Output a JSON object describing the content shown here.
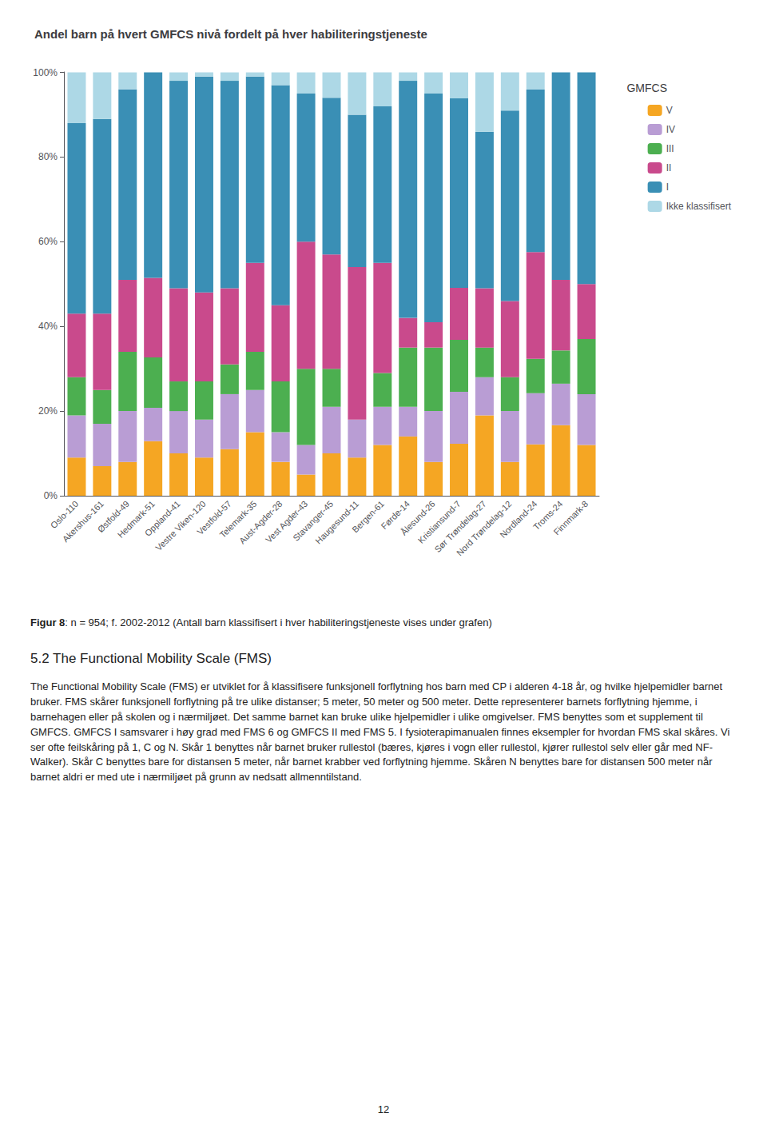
{
  "chart_data": {
    "type": "bar",
    "stacked": true,
    "title": "Andel barn på hvert GMFCS nivå fordelt på hver habiliteringstjeneste",
    "categories": [
      "Oslo-110",
      "Akershus-161",
      "Østfold-49",
      "Hedmark-51",
      "Oppland-41",
      "Vestre Viken-120",
      "Vestfold-57",
      "Telemark-35",
      "Aust-Agder-28",
      "Vest Agder-43",
      "Stavanger-45",
      "Haugesund-11",
      "Bergen-61",
      "Førde-14",
      "Ålesund-26",
      "Kristiansund-7",
      "Sør Trøndelag-27",
      "Nord Trøndelag-12",
      "Nordland-24",
      "Troms-24",
      "Finnmark-8"
    ],
    "series": [
      {
        "name": "V",
        "color": "#f5a623",
        "values": [
          0.09,
          0.07,
          0.08,
          0.128713,
          0.1,
          0.09,
          0.11,
          0.15,
          0.08,
          0.05,
          0.1,
          0.09,
          0.12,
          0.14,
          0.08,
          0.122807,
          0.19,
          0.08,
          0.121212,
          0.166667,
          0.12
        ]
      },
      {
        "name": "IV",
        "color": "#b99dd4",
        "values": [
          0.1,
          0.1,
          0.12,
          0.079208,
          0.1,
          0.09,
          0.13,
          0.1,
          0.07,
          0.07,
          0.11,
          0.09,
          0.09,
          0.07,
          0.12,
          0.122807,
          0.09,
          0.12,
          0.121212,
          0.098039,
          0.12
        ]
      },
      {
        "name": "III",
        "color": "#4caf50",
        "values": [
          0.09,
          0.08,
          0.14,
          0.118812,
          0.07,
          0.09,
          0.07,
          0.09,
          0.12,
          0.18,
          0.09,
          0.0,
          0.08,
          0.14,
          0.15,
          0.122807,
          0.07,
          0.08,
          0.080808,
          0.078431,
          0.13
        ]
      },
      {
        "name": "II",
        "color": "#c94a8c",
        "values": [
          0.15,
          0.18,
          0.17,
          0.188119,
          0.22,
          0.21,
          0.18,
          0.21,
          0.18,
          0.3,
          0.27,
          0.36,
          0.26,
          0.07,
          0.06,
          0.122807,
          0.14,
          0.18,
          0.252525,
          0.166667,
          0.13
        ]
      },
      {
        "name": "I",
        "color": "#3a8fb5",
        "values": [
          0.45,
          0.46,
          0.45,
          0.485149,
          0.49,
          0.51,
          0.49,
          0.44,
          0.52,
          0.35,
          0.37,
          0.36,
          0.37,
          0.56,
          0.54,
          0.447368,
          0.37,
          0.45,
          0.383838,
          0.490196,
          0.5
        ]
      },
      {
        "name": "Ikke klassifisert",
        "color": "#add8e6",
        "values": [
          0.12,
          0.11,
          0.04,
          0,
          0.02,
          0.01,
          0.02,
          0.01,
          0.03,
          0.05,
          0.06,
          0.1,
          0.08,
          0.02,
          0.05,
          0.061404,
          0.14,
          0.09,
          0.040404,
          0,
          0
        ]
      }
    ],
    "ylim": [
      0,
      1.001
    ],
    "yticks": [
      {
        "value": 0,
        "label": "0%"
      },
      {
        "value": 0.2,
        "label": "20%"
      },
      {
        "value": 0.4,
        "label": "40%"
      },
      {
        "value": 0.6,
        "label": "60%"
      },
      {
        "value": 0.8,
        "label": "80%"
      },
      {
        "value": 1.0,
        "label": "100%"
      }
    ],
    "grid": false,
    "legend": "right",
    "legend_title": "GMFCS"
  },
  "caption_label": "Figur 8",
  "caption": ": n = 954; f. 2002-2012 (Antall barn klassifisert i hver habiliteringstjeneste vises under grafen)",
  "section_title": "5.2 The Functional Mobility Scale (FMS)",
  "body_text": "The Functional Mobility Scale (FMS) er utviklet for å klassifisere funksjonell forflytning hos barn med CP i alderen 4-18 år, og hvilke hjelpemidler barnet bruker. FMS skårer funksjonell forflytning på tre ulike distanser; 5 meter, 50 meter og 500 meter. Dette representerer barnets forflytning hjemme, i barnehagen eller på skolen og i nærmiljøet. Det samme barnet kan bruke ulike hjelpemidler i ulike omgivelser. FMS benyttes som et supplement til GMFCS. GMFCS I samsvarer i høy grad med FMS 6 og GMFCS II med FMS 5. I fysioterapimanualen finnes eksempler for hvordan FMS skal skåres. Vi ser ofte feilskåring på 1, C og N. Skår 1 benyttes når barnet bruker rullestol (bæres, kjøres i vogn eller rullestol, kjører rullestol selv eller går med NF-Walker). Skår C benyttes bare for distansen 5 meter, når barnet krabber ved forflytning hjemme. Skåren N benyttes bare for distansen 500 meter når barnet aldri er med ute i nærmiljøet på grunn av nedsatt allmenntilstand.",
  "page_number": "12"
}
